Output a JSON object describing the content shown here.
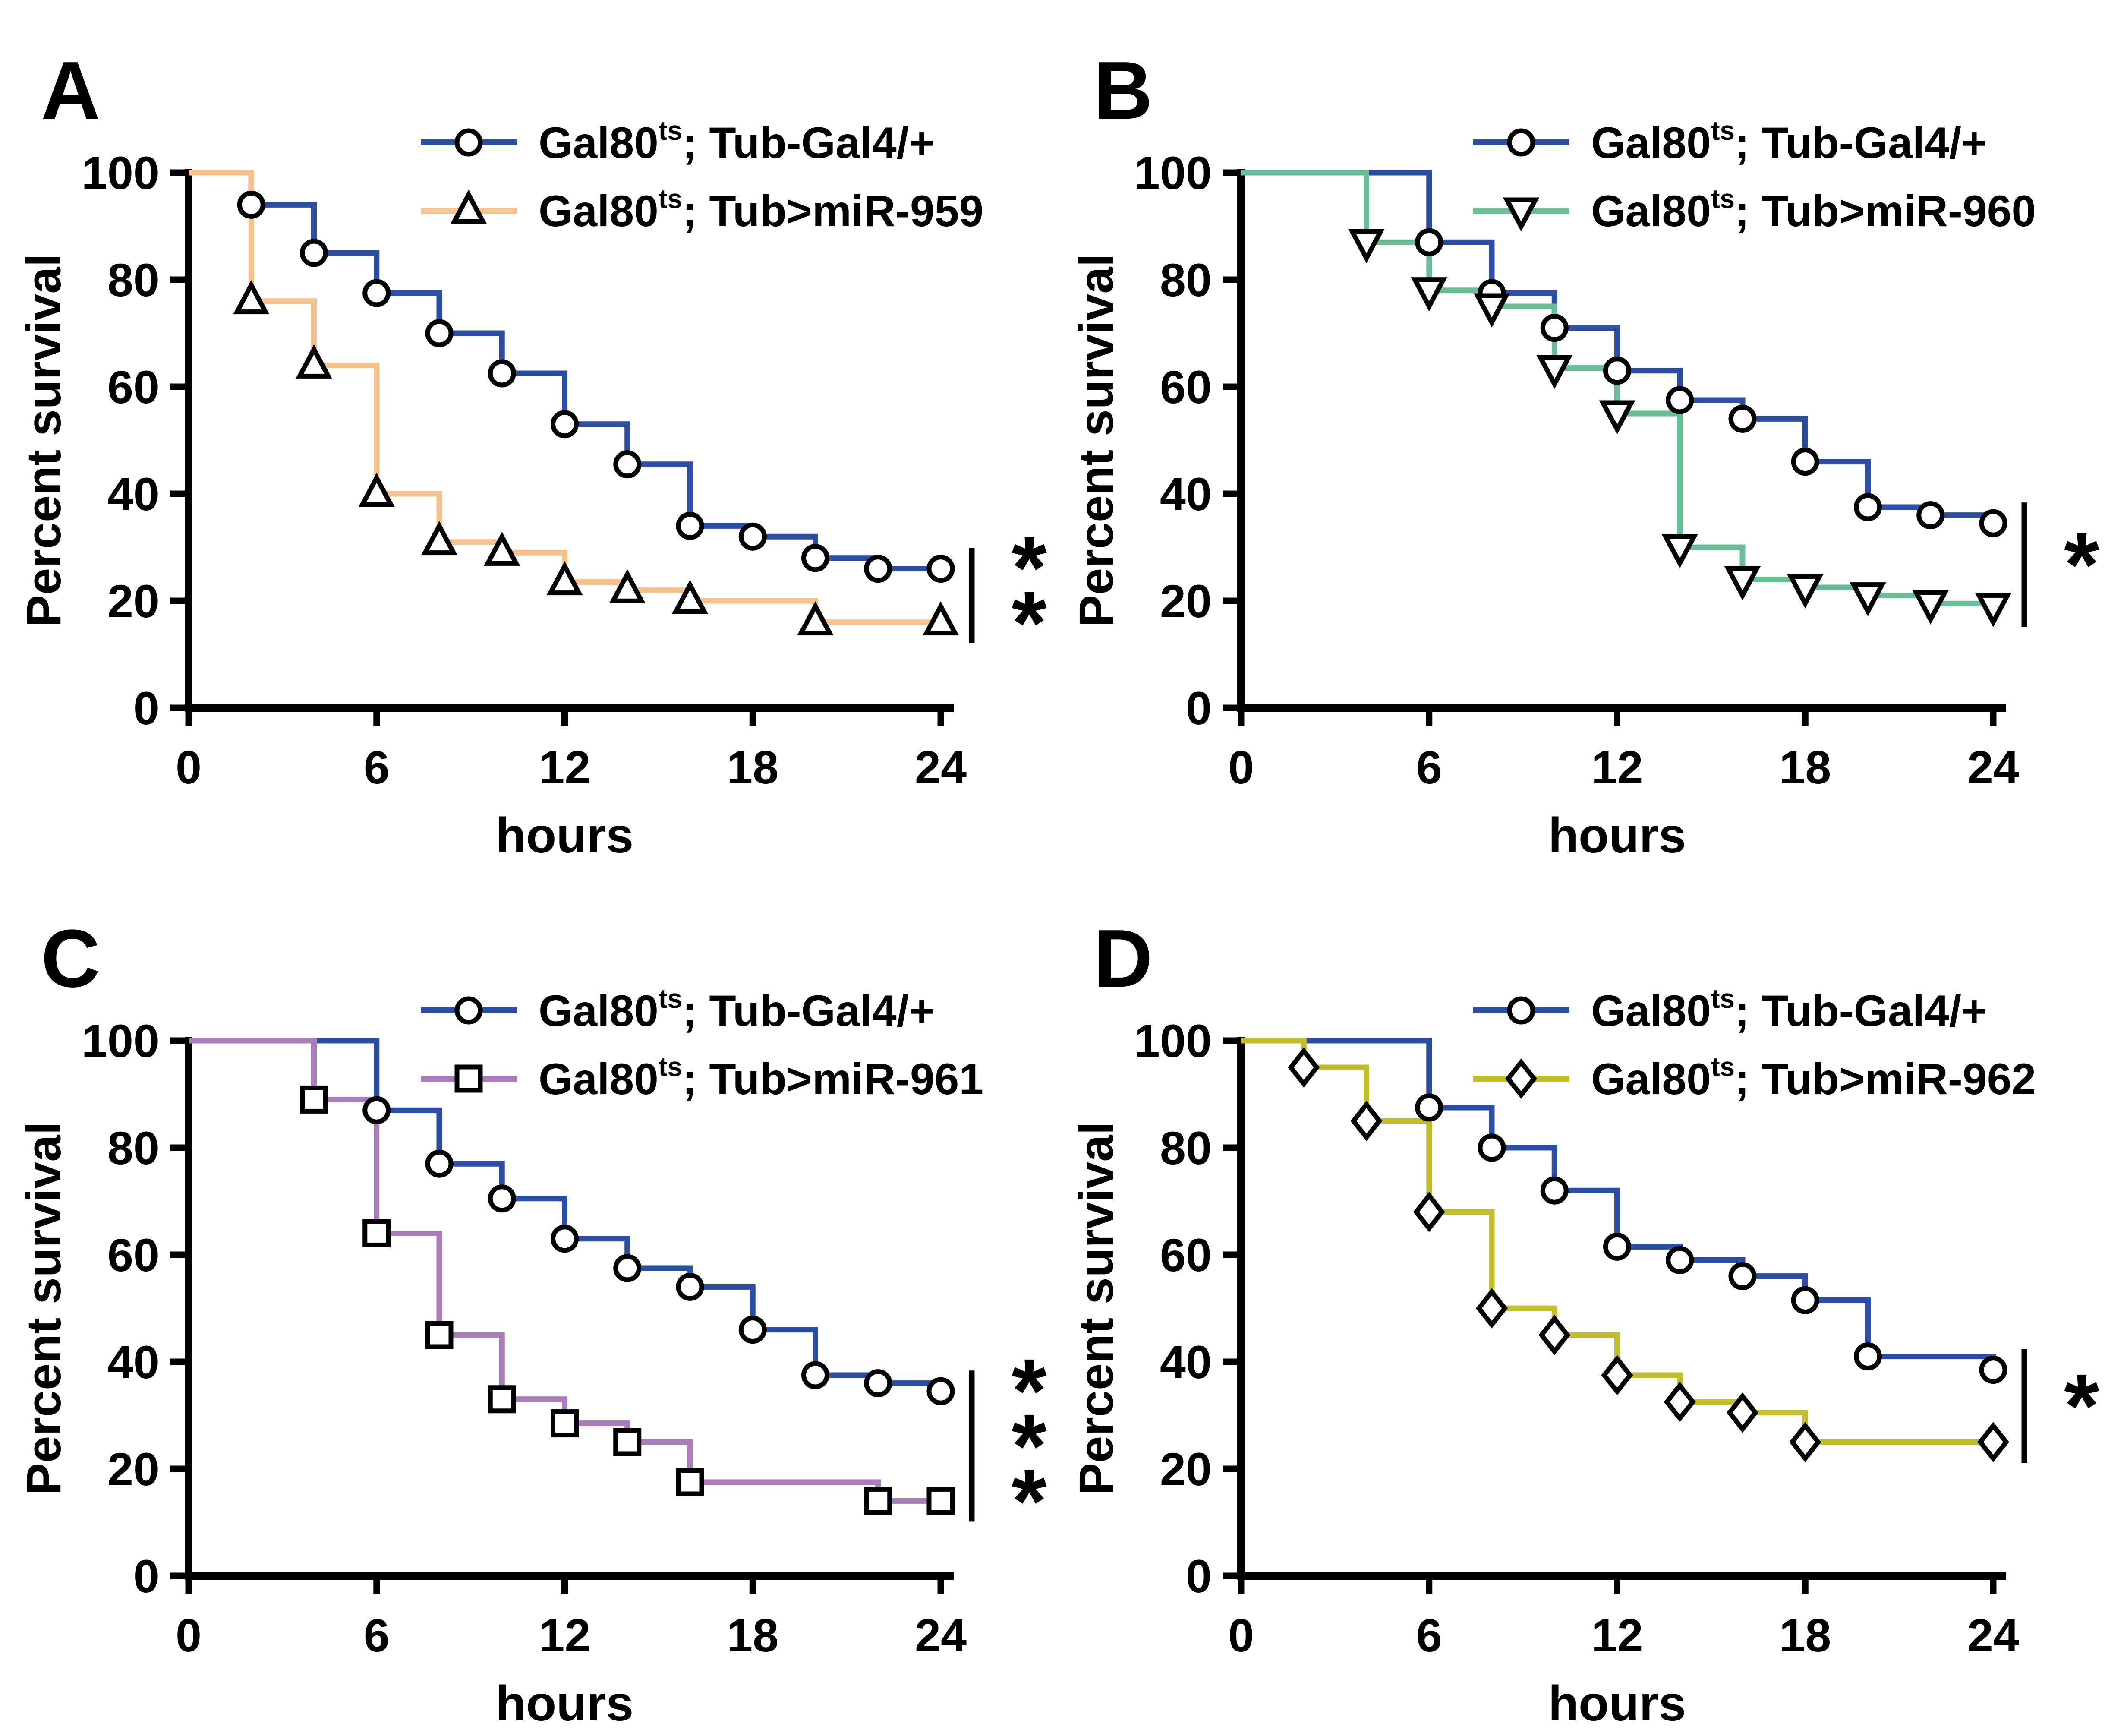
{
  "figure": {
    "description": "Four Kaplan-Meier percent-survival panels A-D comparing control Gal80ts; Tub-Gal4/+ flies to miR-overexpressing flies over 24 hours",
    "xlabel": "hours",
    "ylabel": "Percent survival"
  },
  "colors": {
    "control_blue": "#2B4EA2",
    "mir959_orange": "#F7C28E",
    "mir960_green": "#68BD95",
    "mir961_purple": "#AA7DBA",
    "mir962_yellow": "#C2BE2B",
    "axis_black": "#000000",
    "marker_fill": "#FFFFFF"
  },
  "chart_data": [
    {
      "type": "line",
      "panel_label": "A",
      "xlabel": "hours",
      "ylabel": "Percent survival",
      "xlim": [
        0,
        24
      ],
      "ylim": [
        0,
        100
      ],
      "xticks": [
        0,
        6,
        12,
        18,
        24
      ],
      "yticks": [
        0,
        20,
        40,
        60,
        80,
        100
      ],
      "grid": false,
      "legend_position": "top-right-inside",
      "significance": "**",
      "series": [
        {
          "name": "Gal80ts; Tub-Gal4/+",
          "legend": {
            "pre": "Gal80",
            "sup": "ts",
            "post": "; Tub-Gal4/+"
          },
          "color": "#2B4EA2",
          "marker": "circle",
          "x": [
            0,
            2,
            4,
            6,
            8,
            10,
            12,
            14,
            16,
            18,
            20,
            22,
            24
          ],
          "y": [
            100,
            94,
            85,
            77.5,
            70,
            62.5,
            53,
            45.5,
            34,
            32,
            28,
            26,
            26
          ]
        },
        {
          "name": "Gal80ts; Tub>miR-959",
          "legend": {
            "pre": "Gal80",
            "sup": "ts",
            "post": "; Tub>miR-959"
          },
          "color": "#F7C28E",
          "marker": "triangle-up",
          "x": [
            0,
            2,
            4,
            6,
            8,
            10,
            12,
            14,
            16,
            20,
            24
          ],
          "y": [
            100,
            76,
            64,
            40,
            31,
            29,
            23.5,
            22,
            20,
            16,
            16
          ]
        }
      ]
    },
    {
      "type": "line",
      "panel_label": "B",
      "xlabel": "hours",
      "ylabel": "Percent survival",
      "xlim": [
        0,
        24
      ],
      "ylim": [
        0,
        100
      ],
      "xticks": [
        0,
        6,
        12,
        18,
        24
      ],
      "yticks": [
        0,
        20,
        40,
        60,
        80,
        100
      ],
      "grid": false,
      "legend_position": "top-right-inside",
      "significance": "*",
      "series": [
        {
          "name": "Gal80ts; Tub-Gal4/+",
          "legend": {
            "pre": "Gal80",
            "sup": "ts",
            "post": "; Tub-Gal4/+"
          },
          "color": "#2B4EA2",
          "marker": "circle",
          "x": [
            0,
            6,
            8,
            10,
            12,
            14,
            16,
            18,
            20,
            22,
            24
          ],
          "y": [
            100,
            87,
            77.5,
            71,
            63,
            57.5,
            54,
            46,
            37.5,
            36,
            34.5
          ]
        },
        {
          "name": "Gal80ts; Tub>miR-960",
          "legend": {
            "pre": "Gal80",
            "sup": "ts",
            "post": "; Tub>miR-960"
          },
          "color": "#68BD95",
          "marker": "triangle-down",
          "x": [
            0,
            4,
            6,
            8,
            10,
            12,
            14,
            16,
            18,
            20,
            22,
            24
          ],
          "y": [
            100,
            87,
            78,
            75,
            63.5,
            55,
            30,
            24,
            22.5,
            21,
            19.5,
            19
          ]
        }
      ]
    },
    {
      "type": "line",
      "panel_label": "C",
      "xlabel": "hours",
      "ylabel": "Percent survival",
      "xlim": [
        0,
        24
      ],
      "ylim": [
        0,
        100
      ],
      "xticks": [
        0,
        6,
        12,
        18,
        24
      ],
      "yticks": [
        0,
        20,
        40,
        60,
        80,
        100
      ],
      "grid": false,
      "legend_position": "top-right-inside",
      "significance": "***",
      "series": [
        {
          "name": "Gal80ts; Tub-Gal4/+",
          "legend": {
            "pre": "Gal80",
            "sup": "ts",
            "post": "; Tub-Gal4/+"
          },
          "color": "#2B4EA2",
          "marker": "circle",
          "x": [
            0,
            6,
            8,
            10,
            12,
            14,
            16,
            18,
            20,
            22,
            24
          ],
          "y": [
            100,
            87,
            77,
            70.5,
            63,
            57.5,
            54,
            46,
            37.5,
            36,
            34.5
          ]
        },
        {
          "name": "Gal80ts; Tub>miR-961",
          "legend": {
            "pre": "Gal80",
            "sup": "ts",
            "post": "; Tub>miR-961"
          },
          "color": "#AA7DBA",
          "marker": "square",
          "x": [
            0,
            4,
            6,
            8,
            10,
            12,
            14,
            16,
            22,
            24
          ],
          "y": [
            100,
            89,
            64,
            45,
            33,
            28.5,
            25,
            17.5,
            14,
            14
          ]
        }
      ]
    },
    {
      "type": "line",
      "panel_label": "D",
      "xlabel": "hours",
      "ylabel": "Percent survival",
      "xlim": [
        0,
        24
      ],
      "ylim": [
        0,
        100
      ],
      "xticks": [
        0,
        6,
        12,
        18,
        24
      ],
      "yticks": [
        0,
        20,
        40,
        60,
        80,
        100
      ],
      "grid": false,
      "legend_position": "top-right-inside",
      "significance": "*",
      "series": [
        {
          "name": "Gal80ts; Tub-Gal4/+",
          "legend": {
            "pre": "Gal80",
            "sup": "ts",
            "post": "; Tub-Gal4/+"
          },
          "color": "#2B4EA2",
          "marker": "circle",
          "x": [
            0,
            6,
            8,
            10,
            12,
            14,
            16,
            18,
            20,
            24
          ],
          "y": [
            100,
            87.5,
            80,
            72,
            61.5,
            59,
            56,
            51.5,
            41,
            38.5
          ]
        },
        {
          "name": "Gal80ts; Tub>miR-962",
          "legend": {
            "pre": "Gal80",
            "sup": "ts",
            "post": "; Tub>miR-962"
          },
          "color": "#C2BE2B",
          "marker": "diamond",
          "x": [
            0,
            2,
            4,
            6,
            8,
            10,
            12,
            14,
            16,
            18,
            24
          ],
          "y": [
            100,
            95,
            85,
            68,
            50,
            45,
            37.5,
            32.5,
            30.5,
            25,
            25
          ]
        }
      ]
    }
  ]
}
